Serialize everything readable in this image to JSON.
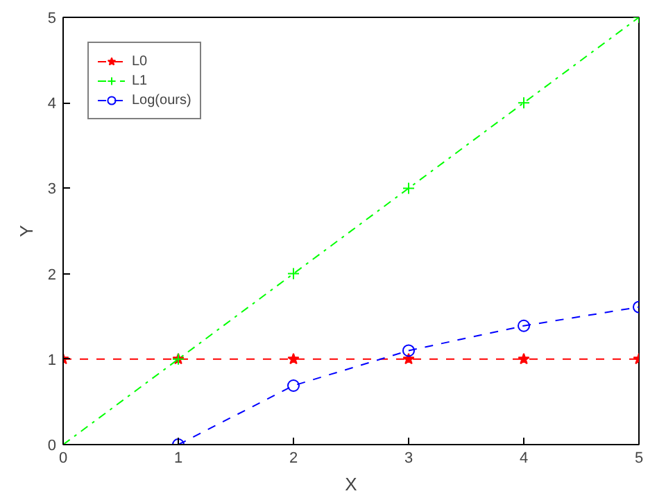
{
  "chart_data": {
    "type": "line",
    "xlabel": "X",
    "ylabel": "Y",
    "x": [
      0,
      1,
      2,
      3,
      4,
      5
    ],
    "xlim": [
      0,
      5
    ],
    "ylim": [
      0,
      5
    ],
    "xticks": [
      0,
      1,
      2,
      3,
      4,
      5
    ],
    "yticks": [
      0,
      1,
      2,
      3,
      4,
      5
    ],
    "grid": false,
    "legend": "top left",
    "series": [
      {
        "name": "L0",
        "color": "#ff0000",
        "values": [
          1,
          1,
          1,
          1,
          1,
          1
        ],
        "marker": "star",
        "line_style": "dashed"
      },
      {
        "name": "L1",
        "color": "#00ff00",
        "values": [
          0,
          1,
          2,
          3,
          4,
          5
        ],
        "marker": "cross",
        "line_style": "dashdot"
      },
      {
        "name": "Log(ours)",
        "color": "#0000ff",
        "values": [
          null,
          0,
          0.69,
          1.1,
          1.39,
          1.61
        ],
        "marker": "circle",
        "line_style": "dashed"
      }
    ]
  }
}
